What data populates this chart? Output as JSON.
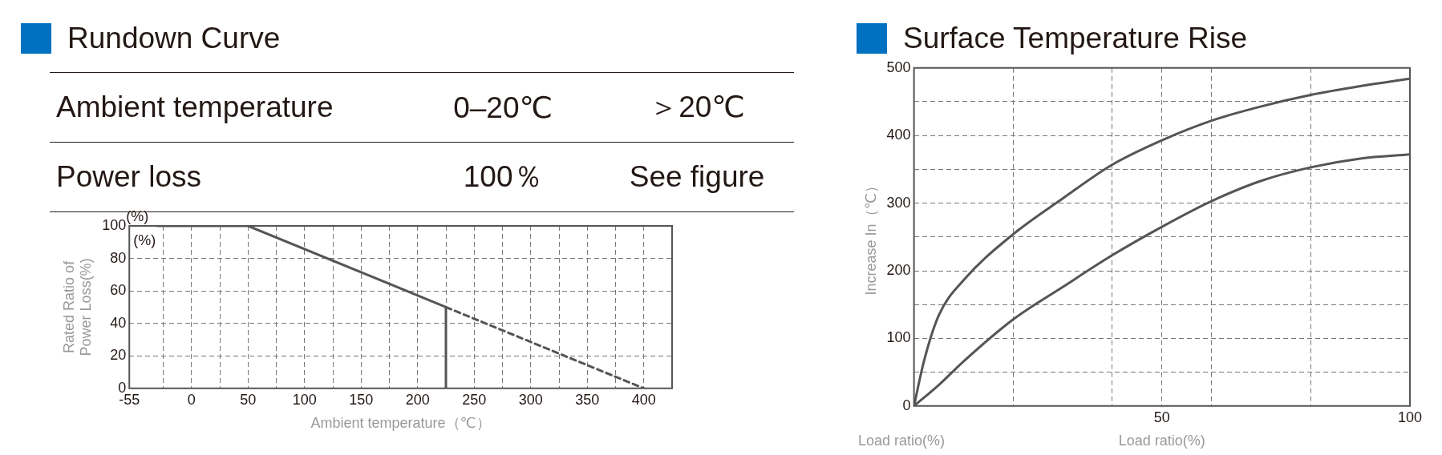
{
  "chart_data": [
    {
      "type": "other",
      "title": "Rundown Curve",
      "annotations": [
        "Ambient temperature",
        "0–20℃",
        "＞20℃",
        "Power loss",
        "100％",
        "See figure"
      ]
    },
    {
      "type": "line",
      "xlabel": "Ambient temperature（℃）",
      "ylabel": "Rated Ratio of Power Loss(%)",
      "annotations": [
        "(%)",
        "(%)"
      ],
      "xlim": [
        -55,
        425
      ],
      "xticks": [
        -55,
        {
          "value": -25,
          "label": null
        },
        0,
        {
          "value": 25,
          "label": null
        },
        50,
        {
          "value": 75,
          "label": null
        },
        100,
        {
          "value": 125,
          "label": null
        },
        150,
        {
          "value": 175,
          "label": null
        },
        200,
        {
          "value": 225,
          "label": null
        },
        250,
        {
          "value": 275,
          "label": null
        },
        300,
        {
          "value": 325,
          "label": null
        },
        350,
        {
          "value": 375,
          "label": null
        },
        400
      ],
      "ylim": [
        0,
        100
      ],
      "yticks": [
        0,
        20,
        40,
        60,
        80,
        100
      ],
      "grid": true,
      "legend": false,
      "marker": "none",
      "series": [
        {
          "color": "#555555",
          "line_style": "solid",
          "x": [
            -30,
            50,
            225,
            225
          ],
          "values": [
            100,
            100,
            50,
            0
          ]
        },
        {
          "color": "#555555",
          "line_style": "dashed",
          "x": [
            225,
            400
          ],
          "values": [
            50,
            0
          ]
        }
      ]
    },
    {
      "type": "line",
      "title": "Surface Temperature Rise",
      "xlabel": "Load ratio(%)",
      "ylabel": "Increase In（℃）",
      "annotations": [
        "Load ratio(%)"
      ],
      "xlim": [
        0,
        100
      ],
      "xticks": [
        {
          "value": 0,
          "label": null
        },
        {
          "value": 20,
          "label": null
        },
        {
          "value": 40,
          "label": null
        },
        50,
        {
          "value": 60,
          "label": null
        },
        {
          "value": 80,
          "label": null
        },
        100
      ],
      "ylim": [
        0,
        500
      ],
      "yticks": [
        0,
        {
          "value": 50,
          "label": null
        },
        100,
        {
          "value": 150,
          "label": null
        },
        200,
        {
          "value": 250,
          "label": null
        },
        300,
        {
          "value": 350,
          "label": null
        },
        400,
        {
          "value": 450,
          "label": null
        },
        500
      ],
      "grid": true,
      "legend": false,
      "marker": "none",
      "series": [
        {
          "color": "#555555",
          "x": [
            0,
            2,
            5,
            10,
            20,
            30,
            40,
            50,
            60,
            70,
            80,
            90,
            100
          ],
          "values": [
            0,
            66,
            134,
            186,
            254,
            307,
            357,
            393,
            422,
            443,
            460,
            473,
            484
          ]
        },
        {
          "color": "#555555",
          "x": [
            0,
            5,
            10,
            20,
            30,
            40,
            50,
            60,
            70,
            80,
            90,
            100
          ],
          "values": [
            0,
            31,
            66,
            128,
            176,
            223,
            265,
            303,
            333,
            353,
            366,
            372
          ]
        }
      ]
    }
  ]
}
